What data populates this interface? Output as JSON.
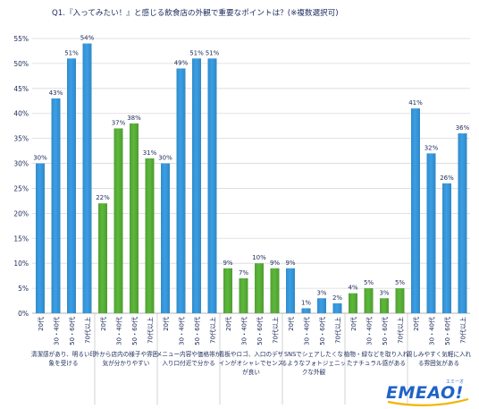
{
  "chart_data": {
    "type": "bar",
    "title": "Q1.『入ってみたい！』と感じる飲食店の外観で重要なポイントは？(※複数選択可)",
    "ylim": [
      0,
      55
    ],
    "ytick_step": 5,
    "ytick_labels": [
      "0%",
      "5%",
      "10%",
      "15%",
      "20%",
      "25%",
      "30%",
      "35%",
      "40%",
      "45%",
      "50%",
      "55%"
    ],
    "unit": "%",
    "grid": true,
    "legend": "none",
    "age_labels": [
      "20代",
      "30・40代",
      "50・60代",
      "70代以上"
    ],
    "groups": [
      {
        "label": "清潔感があり、明るい印象を受ける",
        "values": [
          30,
          43,
          51,
          54
        ],
        "color": "#3a9fe6"
      },
      {
        "label": "外から店内の様子や雰囲気が分かりやすい",
        "values": [
          22,
          37,
          38,
          31
        ],
        "color": "#5cb83a"
      },
      {
        "label": "メニュー内容や価格帯が入り口付近で分かる",
        "values": [
          30,
          49,
          51,
          51
        ],
        "color": "#3a9fe6"
      },
      {
        "label": "看板やロゴ、入口のデザインがオシャレでセンスが良い",
        "values": [
          9,
          7,
          10,
          9
        ],
        "color": "#5cb83a"
      },
      {
        "label": "SNSでシェアしたくなるようなフォトジェニックな外観",
        "values": [
          9,
          1,
          3,
          2
        ],
        "color": "#3a9fe6"
      },
      {
        "label": "植物・緑などを取り入れたナチュラル感がある",
        "values": [
          4,
          5,
          3,
          5
        ],
        "color": "#5cb83a"
      },
      {
        "label": "親しみやすく気軽に入れる雰囲気がある",
        "values": [
          41,
          32,
          26,
          36
        ],
        "color": "#3a9fe6"
      }
    ]
  },
  "logo": {
    "text": "EMEAO!",
    "ruby": "エミーオ"
  }
}
